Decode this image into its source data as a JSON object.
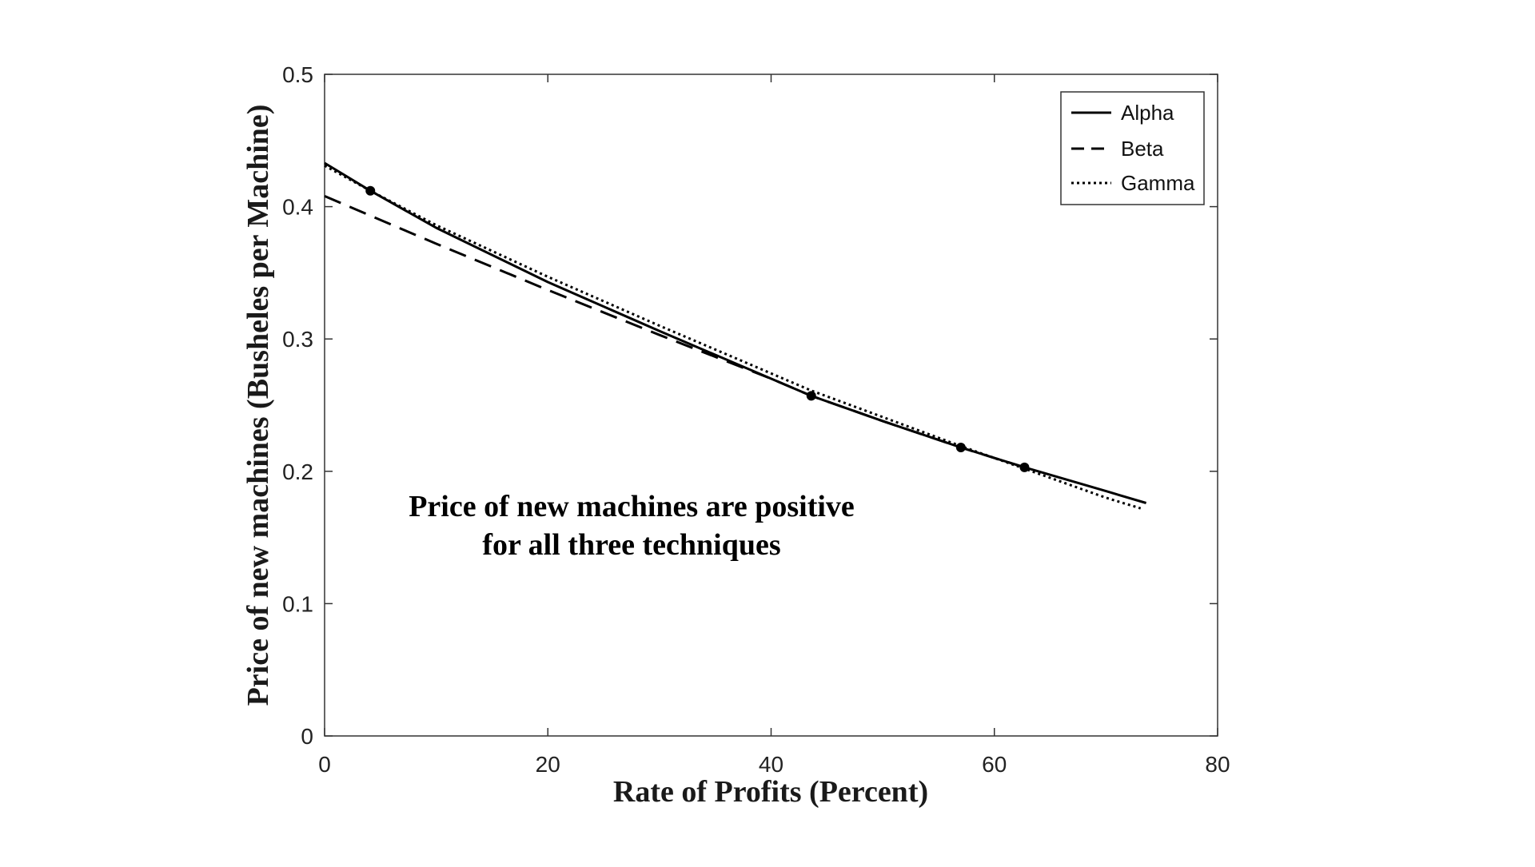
{
  "chart_data": {
    "type": "line",
    "title": "",
    "xlabel": "Rate of Profits (Percent)",
    "ylabel": "Price of new machines (Busheles per Machine)",
    "xlim": [
      0,
      80
    ],
    "ylim": [
      0,
      0.5
    ],
    "xticks": [
      0,
      20,
      40,
      60,
      80
    ],
    "xtick_labels": [
      "0",
      "20",
      "40",
      "60",
      "80"
    ],
    "yticks": [
      0,
      0.1,
      0.2,
      0.3,
      0.4,
      0.5
    ],
    "ytick_labels": [
      "0",
      "0.1",
      "0.2",
      "0.3",
      "0.4",
      "0.5"
    ],
    "grid": false,
    "legend_position": "top-right",
    "series": [
      {
        "name": "Alpha",
        "style": "solid",
        "x": [
          0,
          4.1,
          10,
          20,
          30,
          40,
          43.6,
          50,
          57,
          62.7,
          70,
          73.6
        ],
        "y": [
          0.433,
          0.412,
          0.384,
          0.343,
          0.306,
          0.27,
          0.257,
          0.238,
          0.218,
          0.203,
          0.185,
          0.176
        ]
      },
      {
        "name": "Beta",
        "style": "dashed",
        "x": [
          0,
          10,
          20,
          30,
          40,
          43.6,
          50,
          57,
          60,
          62.7
        ],
        "y": [
          0.408,
          0.372,
          0.337,
          0.303,
          0.27,
          0.257,
          0.238,
          0.218,
          0.21,
          0.203
        ]
      },
      {
        "name": "Gamma",
        "style": "dotted",
        "x": [
          0,
          4.1,
          10,
          20,
          30,
          40,
          43.6,
          50,
          57,
          62.7,
          70,
          73.1
        ],
        "y": [
          0.431,
          0.412,
          0.386,
          0.347,
          0.31,
          0.274,
          0.261,
          0.241,
          0.219,
          0.202,
          0.18,
          0.172
        ]
      }
    ],
    "markers": [
      {
        "x": 4.1,
        "y": 0.412
      },
      {
        "x": 43.6,
        "y": 0.257
      },
      {
        "x": 57,
        "y": 0.218
      },
      {
        "x": 62.7,
        "y": 0.203
      }
    ],
    "annotation": {
      "line1": "Price of new machines are positive",
      "line2": "for all three techniques",
      "x": 27.5,
      "y": 0.175
    }
  },
  "colors": {
    "line": "#000000",
    "axis": "#333333"
  }
}
